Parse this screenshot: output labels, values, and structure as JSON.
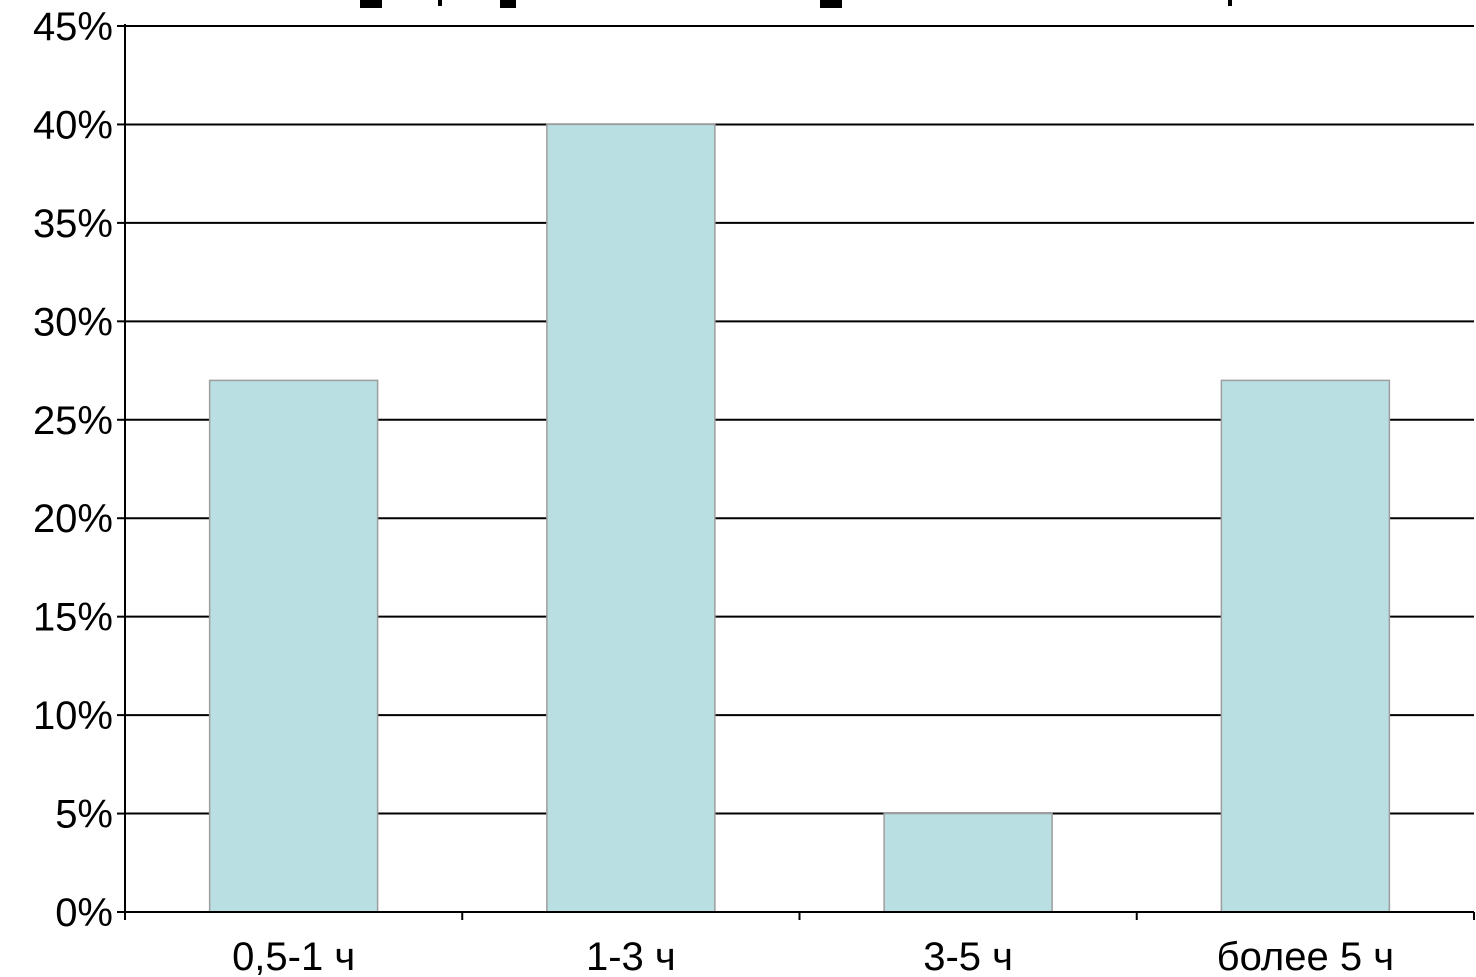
{
  "chart_data": {
    "type": "bar",
    "title": "",
    "xlabel": "",
    "ylabel": "",
    "categories": [
      "0,5-1 ч",
      "1-3 ч",
      "3-5 ч",
      "более 5 ч"
    ],
    "values": [
      27,
      40,
      5,
      27
    ],
    "ylim": [
      0,
      45
    ],
    "yticks": [
      0,
      5,
      10,
      15,
      20,
      25,
      30,
      35,
      40,
      45
    ],
    "ytick_labels": [
      "0%",
      "5%",
      "10%",
      "15%",
      "20%",
      "25%",
      "30%",
      "35%",
      "40%",
      "45%"
    ],
    "grid": true,
    "legend": "none",
    "bar_color": "#B9DFE2",
    "bar_stroke": "#9E9E9E",
    "grid_color": "#000000"
  }
}
